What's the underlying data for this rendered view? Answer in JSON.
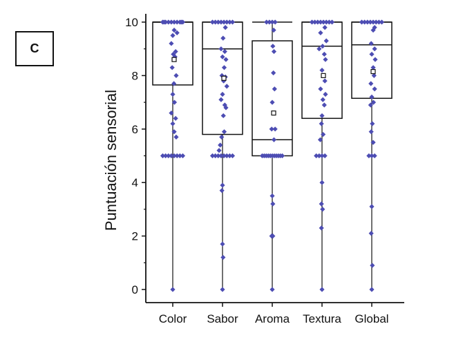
{
  "panel": {
    "label": "C"
  },
  "chart_data": {
    "type": "box",
    "title": "",
    "xlabel": "",
    "ylabel": "Puntuación sensorial",
    "ylim": [
      0,
      10
    ],
    "yticks": [
      0,
      2,
      4,
      6,
      8,
      10
    ],
    "categories": [
      "Color",
      "Sabor",
      "Aroma",
      "Textura",
      "Global"
    ],
    "grid": false,
    "colors": {
      "points": "#4d4db3",
      "lines": "#111111"
    },
    "boxes": [
      {
        "category": "Color",
        "min": 0,
        "q1": 7.65,
        "median": 10.0,
        "q3": 10.0,
        "max": 10,
        "mean": 8.6
      },
      {
        "category": "Sabor",
        "min": 0,
        "q1": 5.8,
        "median": 9.0,
        "q3": 10.0,
        "max": 10,
        "mean": 7.9
      },
      {
        "category": "Aroma",
        "min": 0,
        "q1": 5.0,
        "median": 5.6,
        "q3": 9.3,
        "max": 10,
        "mean": 6.6
      },
      {
        "category": "Textura",
        "min": 0,
        "q1": 6.4,
        "median": 9.1,
        "q3": 10.0,
        "max": 10,
        "mean": 8.0
      },
      {
        "category": "Global",
        "min": 0,
        "q1": 7.15,
        "median": 9.15,
        "q3": 10.0,
        "max": 10,
        "mean": 8.15
      }
    ],
    "points": [
      {
        "category": "Color",
        "values": [
          [
            -0.35,
            10
          ],
          [
            -0.25,
            10
          ],
          [
            -0.15,
            10
          ],
          [
            -0.05,
            10
          ],
          [
            0.05,
            10
          ],
          [
            0.15,
            10
          ],
          [
            0.25,
            10
          ],
          [
            0.35,
            10
          ],
          [
            -0.3,
            10
          ],
          [
            0.3,
            10
          ],
          [
            0.05,
            9.7
          ],
          [
            0.15,
            9.6
          ],
          [
            0.0,
            9.5
          ],
          [
            -0.05,
            9.2
          ],
          [
            0.1,
            8.9
          ],
          [
            0.02,
            8.8
          ],
          [
            0.08,
            8.7
          ],
          [
            -0.02,
            8.3
          ],
          [
            0.12,
            8.0
          ],
          [
            0.04,
            7.7
          ],
          [
            0.0,
            7.3
          ],
          [
            0.06,
            7.0
          ],
          [
            -0.05,
            6.6
          ],
          [
            0.1,
            6.4
          ],
          [
            0.0,
            6.2
          ],
          [
            0.05,
            5.9
          ],
          [
            0.12,
            5.7
          ],
          [
            -0.35,
            5
          ],
          [
            -0.25,
            5
          ],
          [
            -0.15,
            5
          ],
          [
            -0.05,
            5
          ],
          [
            0.05,
            5
          ],
          [
            0.15,
            5
          ],
          [
            0.25,
            5
          ],
          [
            0.35,
            5
          ],
          [
            0,
            0
          ]
        ]
      },
      {
        "category": "Sabor",
        "values": [
          [
            -0.35,
            10
          ],
          [
            -0.25,
            10
          ],
          [
            -0.15,
            10
          ],
          [
            -0.05,
            10
          ],
          [
            0.05,
            10
          ],
          [
            0.15,
            10
          ],
          [
            0.25,
            10
          ],
          [
            0.35,
            10
          ],
          [
            0.1,
            9.8
          ],
          [
            0.02,
            9.4
          ],
          [
            -0.05,
            9.0
          ],
          [
            0.08,
            8.9
          ],
          [
            0.0,
            8.7
          ],
          [
            0.12,
            8.6
          ],
          [
            0.06,
            8.3
          ],
          [
            -0.02,
            8.0
          ],
          [
            0.1,
            7.95
          ],
          [
            0.04,
            7.8
          ],
          [
            0.15,
            7.6
          ],
          [
            0.0,
            7.3
          ],
          [
            -0.05,
            7.1
          ],
          [
            0.08,
            6.9
          ],
          [
            0.12,
            6.8
          ],
          [
            0.03,
            6.5
          ],
          [
            0.06,
            5.9
          ],
          [
            -0.03,
            5.7
          ],
          [
            -0.08,
            5.4
          ],
          [
            -0.12,
            5.2
          ],
          [
            -0.35,
            5
          ],
          [
            -0.25,
            5
          ],
          [
            -0.15,
            5
          ],
          [
            -0.05,
            5
          ],
          [
            0.05,
            5
          ],
          [
            0.15,
            5
          ],
          [
            0.25,
            5
          ],
          [
            0.35,
            5
          ],
          [
            0.0,
            3.9
          ],
          [
            -0.02,
            3.7
          ],
          [
            0.0,
            1.7
          ],
          [
            0.02,
            1.2
          ],
          [
            0,
            0
          ]
        ]
      },
      {
        "category": "Aroma",
        "values": [
          [
            -0.2,
            10
          ],
          [
            -0.1,
            10
          ],
          [
            0.0,
            10
          ],
          [
            0.1,
            10
          ],
          [
            0.05,
            9.7
          ],
          [
            0.02,
            9.1
          ],
          [
            0.06,
            8.9
          ],
          [
            0.04,
            8.1
          ],
          [
            0.08,
            7.5
          ],
          [
            0.0,
            7.0
          ],
          [
            0.05,
            6.6
          ],
          [
            0.1,
            6.0
          ],
          [
            -0.02,
            6.0
          ],
          [
            0.06,
            5.6
          ],
          [
            -0.35,
            5
          ],
          [
            -0.28,
            5
          ],
          [
            -0.21,
            5
          ],
          [
            -0.14,
            5
          ],
          [
            -0.07,
            5
          ],
          [
            0.0,
            5
          ],
          [
            0.07,
            5
          ],
          [
            0.14,
            5
          ],
          [
            0.21,
            5
          ],
          [
            0.28,
            5
          ],
          [
            0.35,
            5
          ],
          [
            0.0,
            3.5
          ],
          [
            0.02,
            3.2
          ],
          [
            -0.02,
            2.0
          ],
          [
            0.02,
            2.0
          ],
          [
            0,
            0
          ]
        ]
      },
      {
        "category": "Textura",
        "values": [
          [
            -0.35,
            10
          ],
          [
            -0.25,
            10
          ],
          [
            -0.15,
            10
          ],
          [
            -0.05,
            10
          ],
          [
            0.05,
            10
          ],
          [
            0.15,
            10
          ],
          [
            0.25,
            10
          ],
          [
            0.35,
            10
          ],
          [
            0.1,
            9.8
          ],
          [
            -0.05,
            9.6
          ],
          [
            0.15,
            9.3
          ],
          [
            0.02,
            9.1
          ],
          [
            -0.1,
            9.0
          ],
          [
            0.08,
            8.8
          ],
          [
            0.12,
            8.6
          ],
          [
            0.0,
            8.2
          ],
          [
            0.05,
            8.0
          ],
          [
            0.1,
            7.8
          ],
          [
            -0.05,
            7.5
          ],
          [
            0.12,
            7.3
          ],
          [
            0.03,
            7.1
          ],
          [
            0.08,
            6.9
          ],
          [
            0.0,
            6.5
          ],
          [
            -0.02,
            6.2
          ],
          [
            0.04,
            5.8
          ],
          [
            -0.06,
            5.6
          ],
          [
            -0.2,
            5
          ],
          [
            -0.1,
            5
          ],
          [
            0.0,
            5
          ],
          [
            0.1,
            5
          ],
          [
            0.0,
            4.0
          ],
          [
            -0.02,
            3.2
          ],
          [
            0.02,
            3.0
          ],
          [
            -0.02,
            2.3
          ],
          [
            0,
            0
          ]
        ]
      },
      {
        "category": "Global",
        "values": [
          [
            -0.35,
            10
          ],
          [
            -0.25,
            10
          ],
          [
            -0.15,
            10
          ],
          [
            -0.05,
            10
          ],
          [
            0.05,
            10
          ],
          [
            0.15,
            10
          ],
          [
            0.25,
            10
          ],
          [
            0.35,
            10
          ],
          [
            0.1,
            9.8
          ],
          [
            0.05,
            9.7
          ],
          [
            -0.02,
            9.2
          ],
          [
            0.1,
            9.0
          ],
          [
            0.0,
            8.8
          ],
          [
            0.12,
            8.6
          ],
          [
            0.05,
            8.3
          ],
          [
            0.08,
            8.0
          ],
          [
            -0.03,
            7.7
          ],
          [
            0.1,
            7.5
          ],
          [
            0.0,
            7.2
          ],
          [
            0.06,
            7.0
          ],
          [
            -0.04,
            6.9
          ],
          [
            0.02,
            6.2
          ],
          [
            -0.02,
            5.9
          ],
          [
            0.05,
            5.5
          ],
          [
            -0.1,
            5
          ],
          [
            0.0,
            5
          ],
          [
            0.1,
            5
          ],
          [
            0.0,
            3.1
          ],
          [
            -0.02,
            2.1
          ],
          [
            0.02,
            0.9
          ],
          [
            0,
            0
          ]
        ]
      }
    ]
  }
}
